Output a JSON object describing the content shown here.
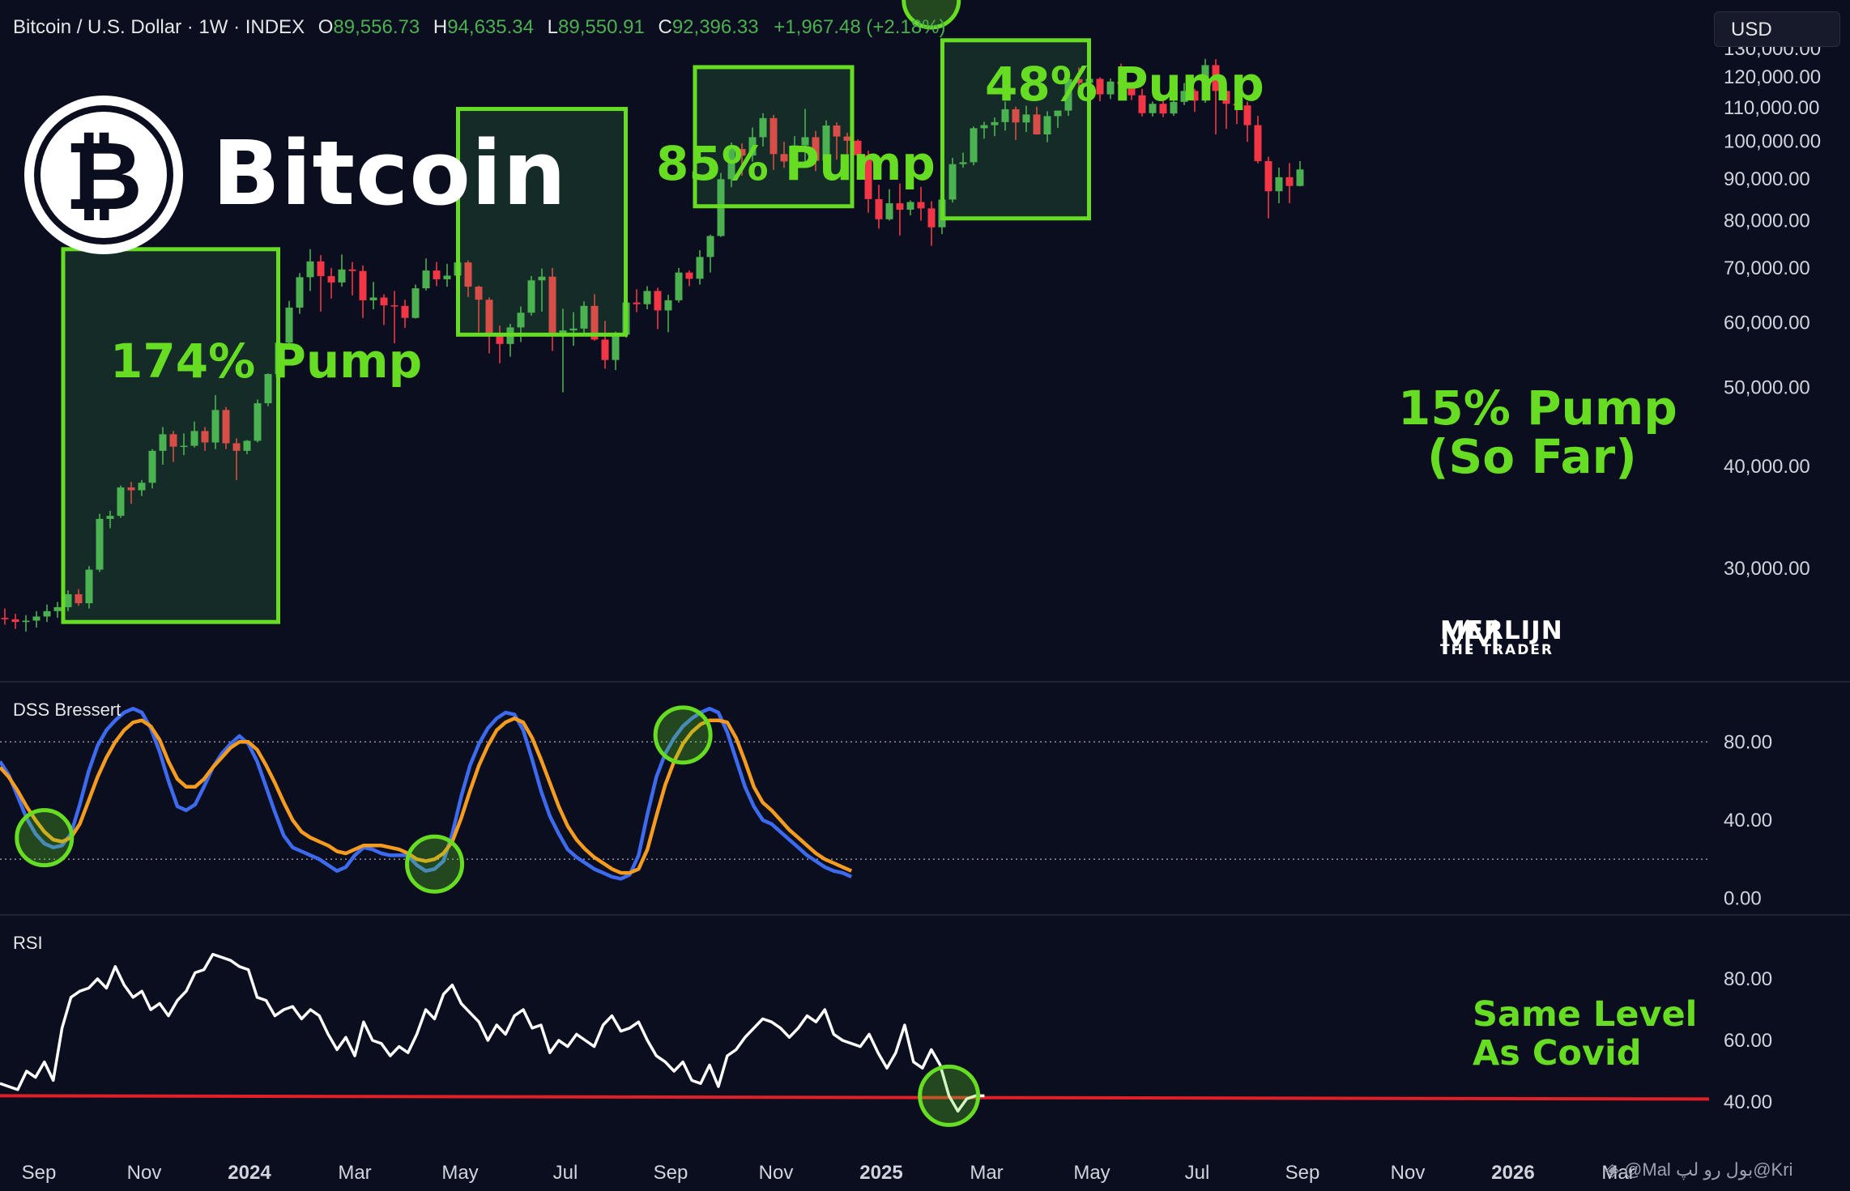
{
  "header": {
    "symbol": "Bitcoin / U.S. Dollar · 1W · INDEX",
    "open_key": "O",
    "open": "89,556.73",
    "high_key": "H",
    "high": "94,635.34",
    "low_key": "L",
    "low": "89,550.91",
    "close_key": "C",
    "close": "92,396.33",
    "change": "+1,967.48 (+2.18%)"
  },
  "currency_button": "USD",
  "logo": {
    "text": "Bitcoin"
  },
  "annotations": {
    "pump1": "174% Pump",
    "pump2": "85% Pump",
    "pump3": "48% Pump",
    "pump4_line1": "15% Pump",
    "pump4_line2": "(So Far)",
    "rsi_note_line1": "Same Level",
    "rsi_note_line2": "As Covid"
  },
  "watermark": {
    "brand_line1": "MERLIJN",
    "brand_line2": "THE TRADER",
    "source": "◈ @Mal بول رو لپ@Kri"
  },
  "colors": {
    "up": "#4caf50",
    "down": "#f23645",
    "highlight": "#66dd22",
    "dss_fast": "#3d6bf0",
    "dss_slow": "#f59b1f",
    "rsi_line": "#ffffff",
    "rsi_level": "#e21f26",
    "background": "#0b0e1f"
  },
  "chart_data": [
    {
      "type": "candlestick",
      "title": "Bitcoin / U.S. Dollar · 1W · INDEX",
      "ylabel": "USD",
      "ylim": [
        22000,
        136000
      ],
      "yticks": [
        "130,000.00",
        "120,000.00",
        "110,000.00",
        "100,000.00",
        "90,000.00",
        "80,000.00",
        "70,000.00",
        "60,000.00",
        "50,000.00",
        "40,000.00",
        "30,000.00"
      ],
      "x_tick_labels": [
        "Sep",
        "Nov",
        "2024",
        "Mar",
        "May",
        "Jul",
        "Sep",
        "Nov",
        "2025",
        "Mar",
        "May",
        "Jul",
        "Sep",
        "Nov",
        "2026",
        "Mar"
      ],
      "x_tick_bold": [
        false,
        false,
        true,
        false,
        false,
        false,
        false,
        false,
        true,
        false,
        false,
        false,
        false,
        false,
        true,
        false
      ],
      "candles_ohlc": [
        [
          26100,
          26800,
          25600,
          26000
        ],
        [
          26000,
          26400,
          25300,
          25800
        ],
        [
          25800,
          26300,
          25100,
          25900
        ],
        [
          25900,
          26600,
          25400,
          26200
        ],
        [
          26200,
          27100,
          25800,
          26600
        ],
        [
          26600,
          27300,
          26100,
          26900
        ],
        [
          26900,
          28200,
          26600,
          27900
        ],
        [
          27900,
          28300,
          27000,
          27200
        ],
        [
          27200,
          30200,
          26800,
          29900
        ],
        [
          29900,
          35000,
          29700,
          34500
        ],
        [
          34500,
          35300,
          33600,
          34800
        ],
        [
          34800,
          37900,
          34600,
          37700
        ],
        [
          37700,
          38300,
          36000,
          37400
        ],
        [
          37400,
          38500,
          36800,
          38200
        ],
        [
          38200,
          42000,
          37600,
          41800
        ],
        [
          41800,
          44700,
          40200,
          43800
        ],
        [
          43800,
          44200,
          40500,
          42300
        ],
        [
          42300,
          43900,
          41300,
          42400
        ],
        [
          42400,
          45400,
          42200,
          44200
        ],
        [
          44200,
          44700,
          41800,
          42800
        ],
        [
          42800,
          48900,
          42000,
          46900
        ],
        [
          46900,
          47300,
          42000,
          42700
        ],
        [
          42700,
          43300,
          38500,
          41800
        ],
        [
          41800,
          43100,
          41400,
          43000
        ],
        [
          43000,
          48300,
          42800,
          47800
        ],
        [
          47800,
          52000,
          47400,
          51900
        ],
        [
          51900,
          57500,
          50500,
          56700
        ],
        [
          56700,
          63800,
          56500,
          62600
        ],
        [
          62600,
          69000,
          61500,
          68200
        ],
        [
          68200,
          73800,
          65600,
          71300
        ],
        [
          71300,
          72600,
          61900,
          68400
        ],
        [
          68400,
          70000,
          64200,
          67200
        ],
        [
          67200,
          72700,
          66400,
          69700
        ],
        [
          69700,
          71200,
          64800,
          69400
        ],
        [
          69400,
          70500,
          60800,
          63900
        ],
        [
          63900,
          67300,
          62300,
          64400
        ],
        [
          64400,
          65000,
          59600,
          63000
        ],
        [
          63000,
          65600,
          56600,
          62900
        ],
        [
          62900,
          64000,
          59100,
          60800
        ],
        [
          60800,
          66800,
          60700,
          66100
        ],
        [
          66100,
          71900,
          65700,
          69500
        ],
        [
          69500,
          71200,
          66500,
          67800
        ],
        [
          67800,
          70800,
          66400,
          68500
        ],
        [
          68500,
          71900,
          66000,
          71100
        ],
        [
          71100,
          71500,
          64500,
          66400
        ],
        [
          66400,
          66600,
          58400,
          64000
        ],
        [
          64000,
          64400,
          55000,
          58000
        ],
        [
          58000,
          59500,
          53500,
          56500
        ],
        [
          56500,
          59800,
          54500,
          59200
        ],
        [
          59200,
          62800,
          56800,
          61700
        ],
        [
          61700,
          68400,
          61200,
          67600
        ],
        [
          67600,
          69900,
          61900,
          68300
        ],
        [
          68300,
          70000,
          55400,
          58200
        ],
        [
          58200,
          62400,
          49300,
          58700
        ],
        [
          58700,
          61800,
          56200,
          59000
        ],
        [
          59000,
          63700,
          58000,
          62900
        ],
        [
          62900,
          65000,
          57000,
          57200
        ],
        [
          57200,
          60300,
          52700,
          54000
        ],
        [
          54000,
          58500,
          52500,
          58000
        ],
        [
          58000,
          64100,
          57500,
          63500
        ],
        [
          63500,
          65900,
          61800,
          63200
        ],
        [
          63200,
          66500,
          62300,
          65600
        ],
        [
          65600,
          66200,
          58900,
          62100
        ],
        [
          62100,
          64900,
          58400,
          63900
        ],
        [
          63900,
          70000,
          63500,
          69100
        ],
        [
          69100,
          69500,
          66500,
          67900
        ],
        [
          67900,
          73600,
          66800,
          72200
        ],
        [
          72200,
          76900,
          69100,
          76600
        ],
        [
          76600,
          91500,
          76400,
          89900
        ],
        [
          89900,
          99700,
          87900,
          97900
        ],
        [
          97900,
          99500,
          90800,
          96100
        ],
        [
          96100,
          104000,
          94500,
          101200
        ],
        [
          101200,
          108300,
          98600,
          106800
        ],
        [
          106800,
          107800,
          92300,
          96500
        ],
        [
          96500,
          99900,
          92800,
          94500
        ],
        [
          94500,
          101500,
          92300,
          98900
        ],
        [
          98900,
          109600,
          94100,
          101200
        ],
        [
          101200,
          103000,
          92000,
          94700
        ],
        [
          94700,
          106100,
          90600,
          104600
        ],
        [
          104600,
          105500,
          95000,
          101400
        ],
        [
          101400,
          102500,
          94200,
          100200
        ],
        [
          100200,
          100600,
          91300,
          96200
        ],
        [
          96200,
          97400,
          81800,
          85000
        ],
        [
          85000,
          88500,
          78200,
          80300
        ],
        [
          80300,
          87400,
          80000,
          84000
        ],
        [
          84000,
          88800,
          76700,
          82500
        ],
        [
          82500,
          84700,
          81200,
          84300
        ],
        [
          84300,
          88000,
          80000,
          82800
        ],
        [
          82800,
          84500,
          74500,
          78500
        ],
        [
          78500,
          86600,
          77000,
          84900
        ],
        [
          84900,
          95500,
          84200,
          93800
        ],
        [
          93800,
          96900,
          92900,
          94300
        ],
        [
          94300,
          104300,
          93500,
          103800
        ],
        [
          103800,
          105700,
          100800,
          104700
        ],
        [
          104700,
          107000,
          101500,
          105600
        ],
        [
          105600,
          111900,
          103100,
          109500
        ],
        [
          109500,
          110300,
          100400,
          105500
        ],
        [
          105500,
          110600,
          102700,
          107900
        ],
        [
          107900,
          110300,
          103500,
          102000
        ],
        [
          102000,
          108900,
          99800,
          107400
        ],
        [
          107400,
          108800,
          103900,
          109100
        ],
        [
          109100,
          118900,
          107500,
          119200
        ],
        [
          119200,
          123200,
          115700,
          117900
        ],
        [
          117900,
          120200,
          113000,
          119300
        ],
        [
          119300,
          119800,
          112000,
          114200
        ],
        [
          114200,
          119400,
          112700,
          118400
        ],
        [
          118400,
          124500,
          116800,
          117500
        ],
        [
          117500,
          117900,
          112400,
          113900
        ],
        [
          113900,
          116000,
          107300,
          108300
        ],
        [
          108300,
          111900,
          107300,
          111200
        ],
        [
          111200,
          113400,
          107100,
          108200
        ],
        [
          108200,
          116400,
          107500,
          111800
        ],
        [
          111800,
          117900,
          110800,
          115300
        ],
        [
          115300,
          116000,
          108700,
          112200
        ],
        [
          112200,
          126200,
          111500,
          124000
        ],
        [
          124000,
          126100,
          102000,
          115300
        ],
        [
          115300,
          115900,
          103600,
          111200
        ],
        [
          111200,
          116400,
          105000,
          110700
        ],
        [
          110700,
          111900,
          99900,
          104700
        ],
        [
          104700,
          107500,
          94000,
          94600
        ],
        [
          94600,
          95800,
          80500,
          86900
        ],
        [
          86900,
          92900,
          84000,
          90400
        ],
        [
          90400,
          94100,
          84000,
          88200
        ],
        [
          88200,
          94600,
          88100,
          92400
        ]
      ]
    },
    {
      "type": "line",
      "title": "DSS Bressert",
      "ylim": [
        -6,
        100
      ],
      "yticks": [
        "80.00",
        "40.00",
        "0.00"
      ],
      "reference_levels": [
        80,
        20
      ],
      "series": [
        {
          "values": [
            70,
            63,
            52,
            41,
            33,
            28,
            26,
            27,
            33,
            48,
            65,
            78,
            86,
            91,
            95,
            97,
            95,
            87,
            75,
            60,
            47,
            45,
            48,
            57,
            67,
            74,
            79,
            83,
            79,
            70,
            57,
            44,
            32,
            26,
            24,
            22,
            20,
            17,
            14,
            16,
            22,
            26,
            25,
            23,
            22,
            22,
            22,
            17,
            14,
            15,
            19,
            33,
            52,
            68,
            79,
            87,
            92,
            95,
            94,
            86,
            71,
            55,
            42,
            33,
            25,
            21,
            18,
            15,
            13,
            11,
            10,
            12,
            22,
            43,
            62,
            74,
            82,
            88,
            92,
            95,
            97,
            95,
            85,
            71,
            57,
            47,
            40,
            38,
            34,
            30,
            26,
            22,
            19,
            16,
            14,
            13,
            11
          ]
        },
        {
          "values": [
            67,
            62,
            55,
            47,
            40,
            34,
            30,
            29,
            31,
            38,
            50,
            62,
            72,
            80,
            86,
            90,
            91,
            88,
            81,
            70,
            61,
            57,
            57,
            61,
            67,
            72,
            77,
            80,
            80,
            76,
            68,
            59,
            49,
            40,
            34,
            31,
            29,
            27,
            24,
            23,
            25,
            27,
            27,
            27,
            26,
            25,
            23,
            20,
            19,
            20,
            23,
            29,
            41,
            55,
            68,
            78,
            86,
            90,
            92,
            90,
            82,
            71,
            59,
            47,
            37,
            30,
            25,
            21,
            18,
            15,
            13,
            13,
            15,
            25,
            42,
            58,
            70,
            79,
            85,
            89,
            91,
            91,
            90,
            82,
            70,
            57,
            49,
            45,
            40,
            35,
            31,
            27,
            23,
            20,
            18,
            16,
            14
          ]
        }
      ],
      "highlighted_points": [
        5,
        49,
        77,
        105
      ]
    },
    {
      "type": "line",
      "title": "RSI",
      "ylim": [
        25,
        95
      ],
      "yticks": [
        "80.00",
        "60.00",
        "40.00"
      ],
      "reference_levels": [
        42
      ],
      "series": [
        {
          "values": [
            46,
            45,
            44,
            50,
            48,
            53,
            47,
            64,
            74,
            76,
            77,
            80,
            77,
            84,
            78,
            74,
            76,
            70,
            72,
            68,
            73,
            76,
            82,
            83,
            88,
            87,
            86,
            84,
            83,
            74,
            73,
            68,
            70,
            71,
            67,
            70,
            68,
            62,
            57,
            61,
            55,
            66,
            60,
            59,
            55,
            58,
            56,
            62,
            70,
            67,
            75,
            78,
            72,
            69,
            66,
            60,
            65,
            62,
            68,
            70,
            64,
            65,
            56,
            60,
            58,
            62,
            60,
            58,
            65,
            68,
            63,
            64,
            66,
            60,
            55,
            53,
            50,
            53,
            47,
            46,
            52,
            45,
            55,
            57,
            61,
            64,
            67,
            66,
            64,
            61,
            64,
            68,
            66,
            70,
            62,
            60,
            59,
            58,
            62,
            56,
            51,
            56,
            65,
            53,
            51,
            57,
            52,
            42,
            37,
            41,
            42,
            42
          ]
        }
      ],
      "highlighted_points": [
        107
      ],
      "annotation": "Same Level As Covid"
    }
  ]
}
